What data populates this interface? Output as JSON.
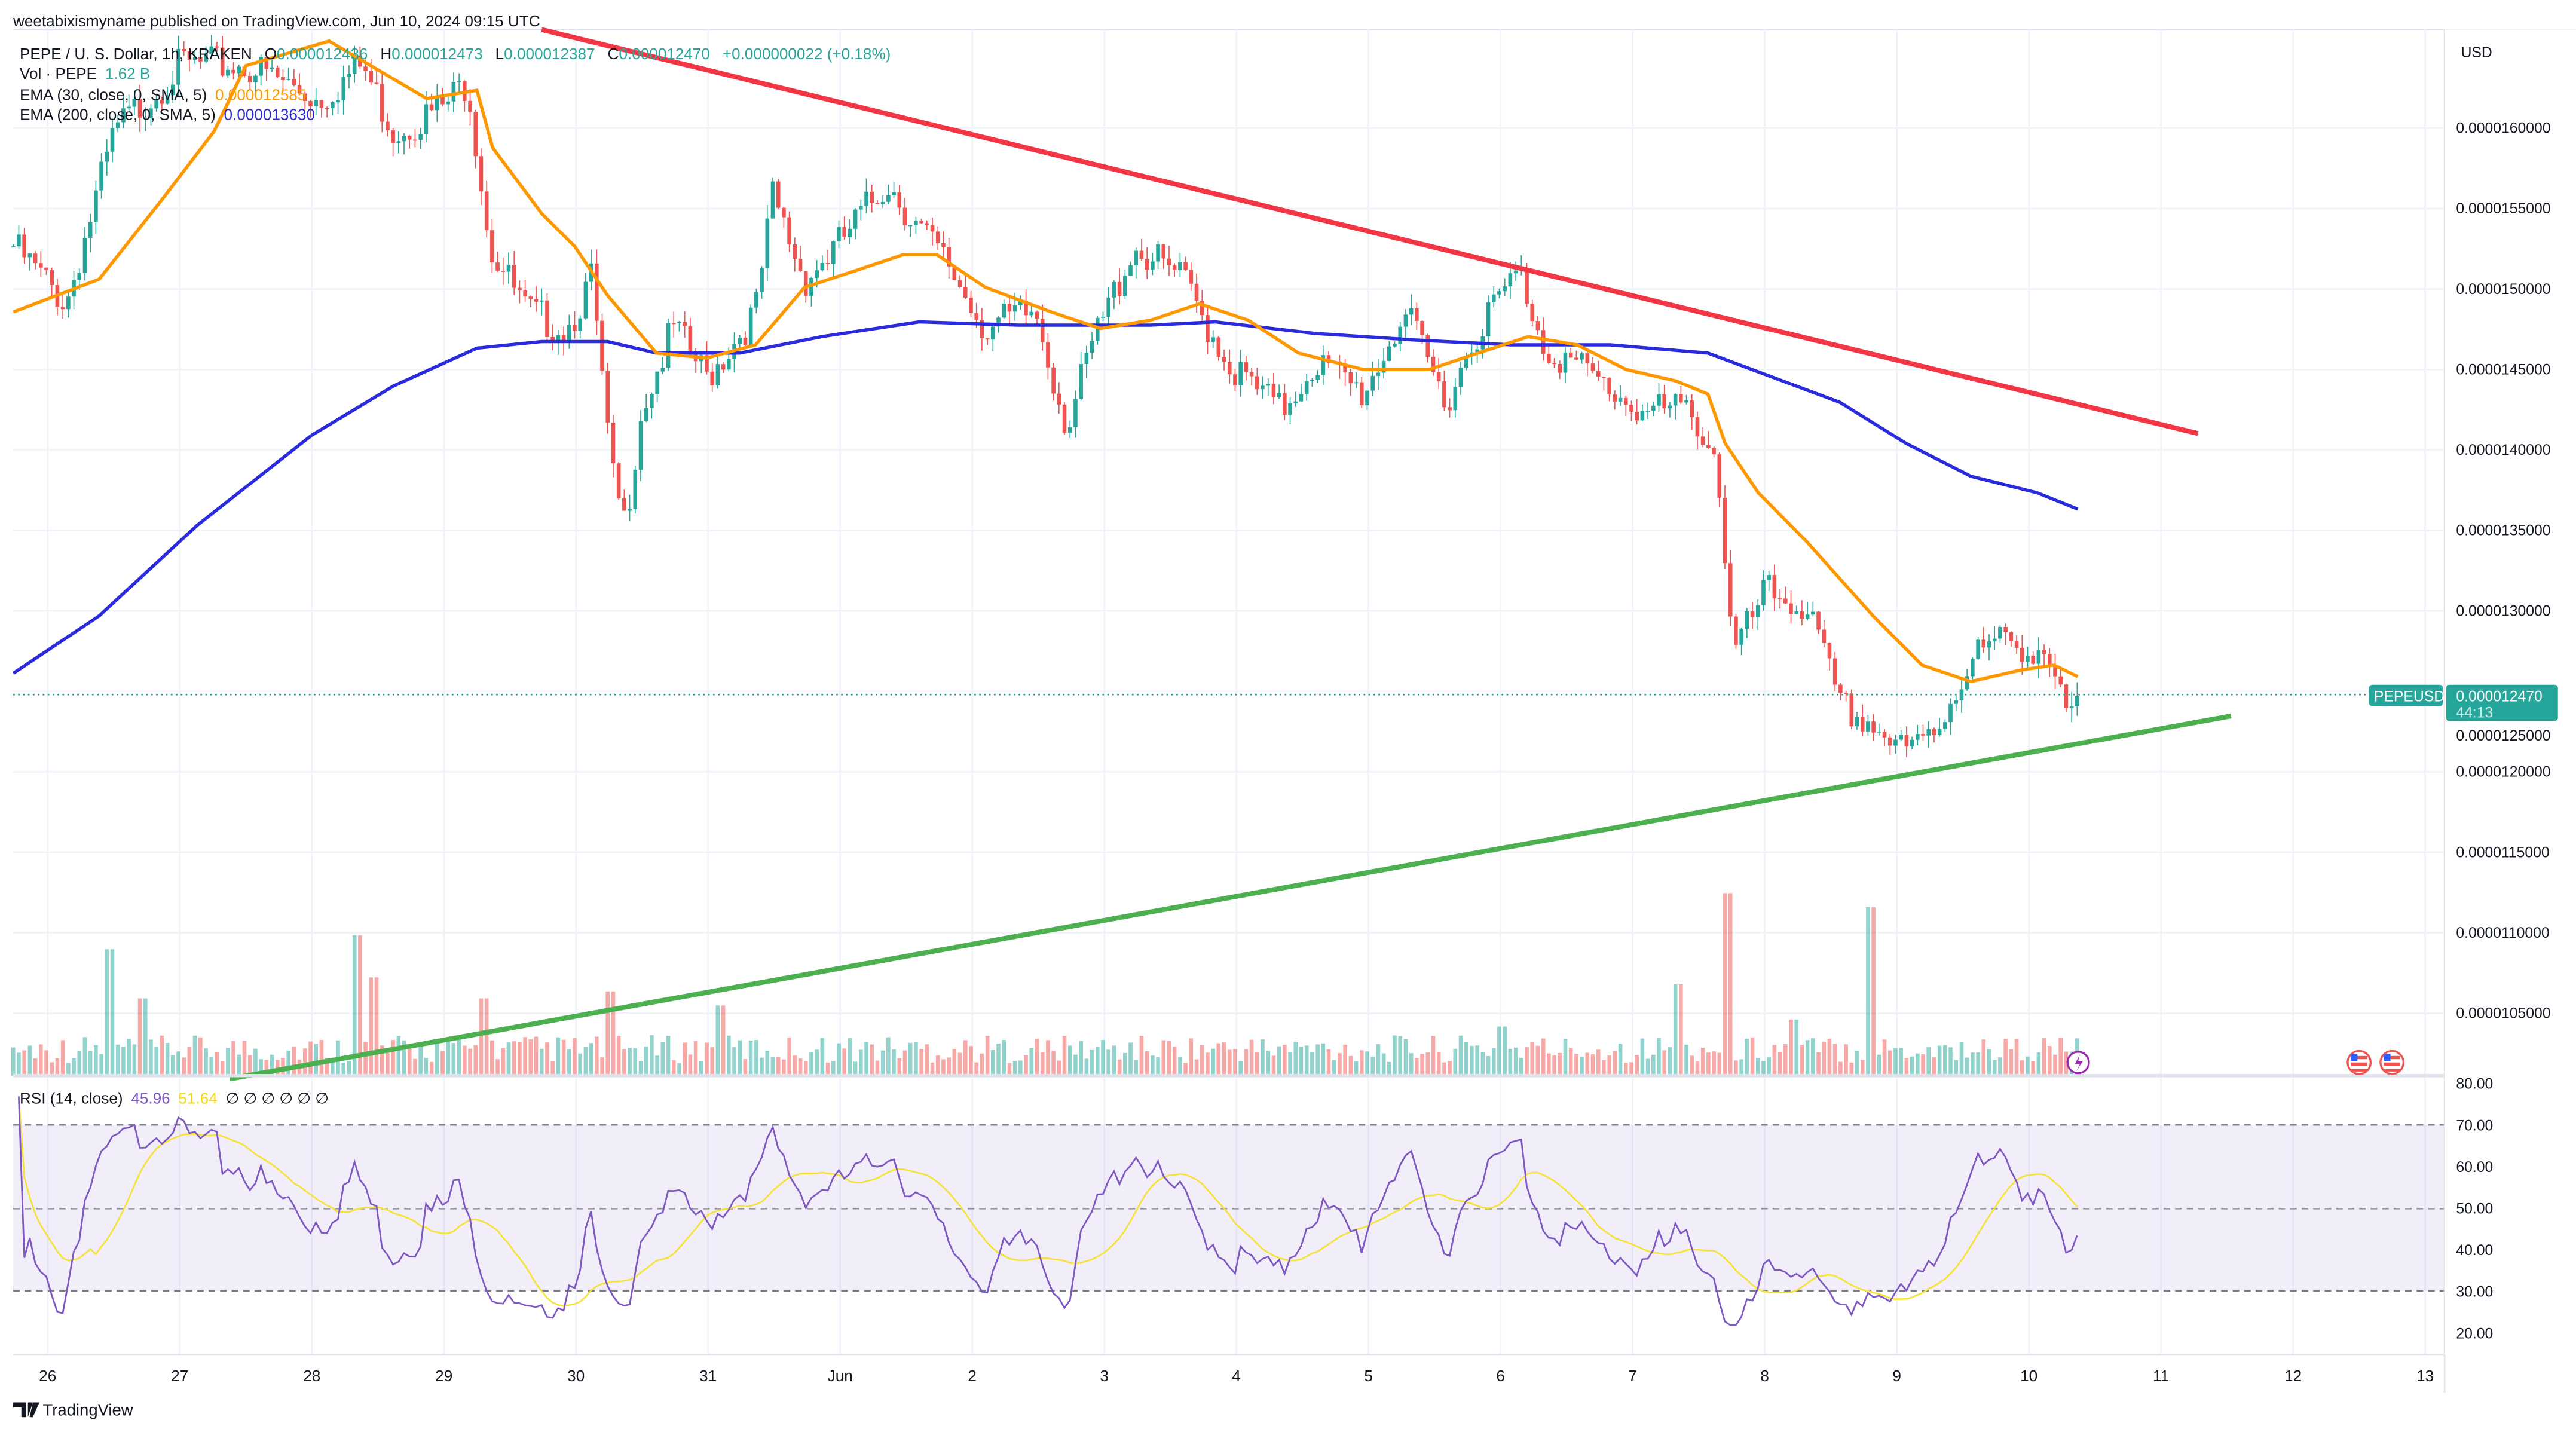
{
  "header": {
    "published": "weetabixismyname published on TradingView.com, Jun 10, 2024 09:15 UTC"
  },
  "legend": {
    "symbol": "PEPE / U. S. Dollar, 1h, KRAKEN",
    "o_label": "O",
    "o": "0.000012436",
    "h_label": "H",
    "h": "0.000012473",
    "l_label": "L",
    "l": "0.000012387",
    "c_label": "C",
    "c": "0.000012470",
    "change": "+0.000000022 (+0.18%)",
    "vol_label": "Vol · PEPE",
    "vol": "1.62 B",
    "ema30_label": "EMA (30, close, 0, SMA, 5)",
    "ema30": "0.000012585",
    "ema200_label": "EMA (200, close, 0, SMA, 5)",
    "ema200": "0.000013630",
    "rsi_label": "RSI (14, close)",
    "rsi": "45.96",
    "rsi_ma": "51.64",
    "rsi_na": "∅ ∅ ∅ ∅ ∅ ∅"
  },
  "axis": {
    "currency": "USD",
    "price_ticks": [
      "0.0000160000",
      "0.0000155000",
      "0.0000150000",
      "0.0000145000",
      "0.0000140000",
      "0.0000135000",
      "0.0000130000",
      "0.0000125000",
      "0.0000120000",
      "0.0000115000",
      "0.0000110000",
      "0.0000105000"
    ],
    "rsi_ticks": [
      "80.00",
      "70.00",
      "60.00",
      "50.00",
      "40.00",
      "30.00",
      "20.00"
    ],
    "date_ticks": [
      "26",
      "27",
      "28",
      "29",
      "30",
      "31",
      "Jun",
      "2",
      "3",
      "4",
      "5",
      "6",
      "7",
      "8",
      "9",
      "10",
      "11",
      "12",
      "13"
    ]
  },
  "price_tag": {
    "symbol": "PEPEUSD",
    "price": "0.000012470",
    "countdown": "44:13"
  },
  "footer": {
    "logo": "TradingView"
  },
  "colors": {
    "up": "#26a69a",
    "down": "#ef5350",
    "ema30": "#ff9800",
    "ema200": "#2b2bde",
    "resistance": "#f23645",
    "support": "#4caf50",
    "rsi": "#7e57c2",
    "rsi_ma": "#f5e33b"
  },
  "chart_data": {
    "type": "candlestick",
    "title": "PEPE / U. S. Dollar, 1h, KRAKEN",
    "x_unit": "days since May 26 2024 00:00 UTC",
    "y_unit": "USD x 1e-9",
    "ylim": [
      10100,
      16700
    ],
    "close_keypoints": [
      [
        -0.26,
        15265
      ],
      [
        0.14,
        14908
      ],
      [
        0.51,
        15980
      ],
      [
        1.01,
        16390
      ],
      [
        1.5,
        16390
      ],
      [
        2.06,
        16180
      ],
      [
        2.38,
        16390
      ],
      [
        2.62,
        15980
      ],
      [
        3.0,
        16130
      ],
      [
        3.18,
        16300
      ],
      [
        3.35,
        15265
      ],
      [
        3.62,
        14857
      ],
      [
        3.93,
        14755
      ],
      [
        4.12,
        15060
      ],
      [
        4.27,
        13840
      ],
      [
        4.37,
        13530
      ],
      [
        4.49,
        14240
      ],
      [
        4.74,
        14755
      ],
      [
        4.99,
        14450
      ],
      [
        5.36,
        14857
      ],
      [
        5.49,
        15570
      ],
      [
        5.73,
        15060
      ],
      [
        5.98,
        15265
      ],
      [
        6.36,
        15670
      ],
      [
        6.6,
        15370
      ],
      [
        6.85,
        15110
      ],
      [
        7.1,
        14755
      ],
      [
        7.48,
        14857
      ],
      [
        7.72,
        14140
      ],
      [
        7.91,
        14650
      ],
      [
        8.22,
        15265
      ],
      [
        8.59,
        15060
      ],
      [
        8.97,
        14500
      ],
      [
        9.34,
        14240
      ],
      [
        9.59,
        14550
      ],
      [
        9.96,
        14350
      ],
      [
        10.27,
        14857
      ],
      [
        10.58,
        14300
      ],
      [
        10.83,
        14755
      ],
      [
        11.14,
        15110
      ],
      [
        11.33,
        14650
      ],
      [
        11.7,
        14450
      ],
      [
        12.08,
        14240
      ],
      [
        12.45,
        14240
      ],
      [
        12.64,
        13940
      ],
      [
        12.76,
        12710
      ],
      [
        13.01,
        13120
      ],
      [
        13.32,
        13020
      ],
      [
        13.57,
        12400
      ],
      [
        13.82,
        12300
      ],
      [
        14.07,
        12100
      ],
      [
        14.32,
        12300
      ],
      [
        14.56,
        12710
      ],
      [
        14.81,
        12810
      ],
      [
        15.12,
        12760
      ],
      [
        15.29,
        12300
      ],
      [
        15.37,
        12470
      ]
    ],
    "ema30": [
      [
        -0.26,
        14857
      ],
      [
        0.39,
        15061
      ],
      [
        0.88,
        15571
      ],
      [
        1.26,
        15980
      ],
      [
        1.5,
        16388
      ],
      [
        2.13,
        16541
      ],
      [
        2.87,
        16184
      ],
      [
        3.25,
        16235
      ],
      [
        3.37,
        15878
      ],
      [
        3.74,
        15469
      ],
      [
        3.99,
        15265
      ],
      [
        4.24,
        14959
      ],
      [
        4.61,
        14602
      ],
      [
        4.99,
        14571
      ],
      [
        5.36,
        14653
      ],
      [
        5.73,
        15010
      ],
      [
        6.11,
        15112
      ],
      [
        6.48,
        15214
      ],
      [
        6.73,
        15214
      ],
      [
        7.1,
        15010
      ],
      [
        7.6,
        14857
      ],
      [
        7.97,
        14755
      ],
      [
        8.35,
        14806
      ],
      [
        8.72,
        14908
      ],
      [
        9.09,
        14806
      ],
      [
        9.47,
        14602
      ],
      [
        9.96,
        14500
      ],
      [
        10.46,
        14500
      ],
      [
        10.83,
        14602
      ],
      [
        11.21,
        14704
      ],
      [
        11.58,
        14653
      ],
      [
        11.95,
        14500
      ],
      [
        12.33,
        14429
      ],
      [
        12.57,
        14347
      ],
      [
        12.7,
        14041
      ],
      [
        12.95,
        13735
      ],
      [
        13.32,
        13429
      ],
      [
        13.82,
        12969
      ],
      [
        14.19,
        12663
      ],
      [
        14.56,
        12561
      ],
      [
        14.94,
        12633
      ],
      [
        15.19,
        12663
      ],
      [
        15.37,
        12592
      ]
    ],
    "ema200": [
      [
        -0.26,
        12612
      ],
      [
        0.39,
        12969
      ],
      [
        1.13,
        13531
      ],
      [
        2.0,
        14092
      ],
      [
        2.62,
        14398
      ],
      [
        3.25,
        14633
      ],
      [
        3.74,
        14673
      ],
      [
        4.24,
        14673
      ],
      [
        4.61,
        14602
      ],
      [
        5.24,
        14602
      ],
      [
        5.86,
        14704
      ],
      [
        6.6,
        14796
      ],
      [
        7.35,
        14776
      ],
      [
        8.35,
        14776
      ],
      [
        8.84,
        14796
      ],
      [
        9.59,
        14724
      ],
      [
        10.34,
        14684
      ],
      [
        11.08,
        14653
      ],
      [
        11.83,
        14653
      ],
      [
        12.57,
        14602
      ],
      [
        13.07,
        14449
      ],
      [
        13.57,
        14296
      ],
      [
        14.07,
        14041
      ],
      [
        14.56,
        13837
      ],
      [
        15.06,
        13735
      ],
      [
        15.37,
        13633
      ]
    ],
    "resistance_line": [
      [
        3.74,
        16612
      ],
      [
        16.28,
        14102
      ]
    ],
    "support_line": [
      [
        1.38,
        10092
      ],
      [
        16.53,
        12347
      ]
    ],
    "volume_spikes": [
      [
        0.45,
        0.9
      ],
      [
        0.7,
        0.55
      ],
      [
        2.35,
        1.0
      ],
      [
        2.45,
        0.7
      ],
      [
        3.3,
        0.55
      ],
      [
        4.25,
        0.6
      ],
      [
        5.1,
        0.5
      ],
      [
        11.0,
        0.35
      ],
      [
        12.35,
        0.65
      ],
      [
        12.7,
        1.3
      ],
      [
        13.8,
        1.2
      ],
      [
        13.2,
        0.4
      ]
    ],
    "rsi_levels": {
      "upper": 70,
      "middle": 50,
      "lower": 30,
      "range": [
        20,
        80
      ]
    }
  }
}
